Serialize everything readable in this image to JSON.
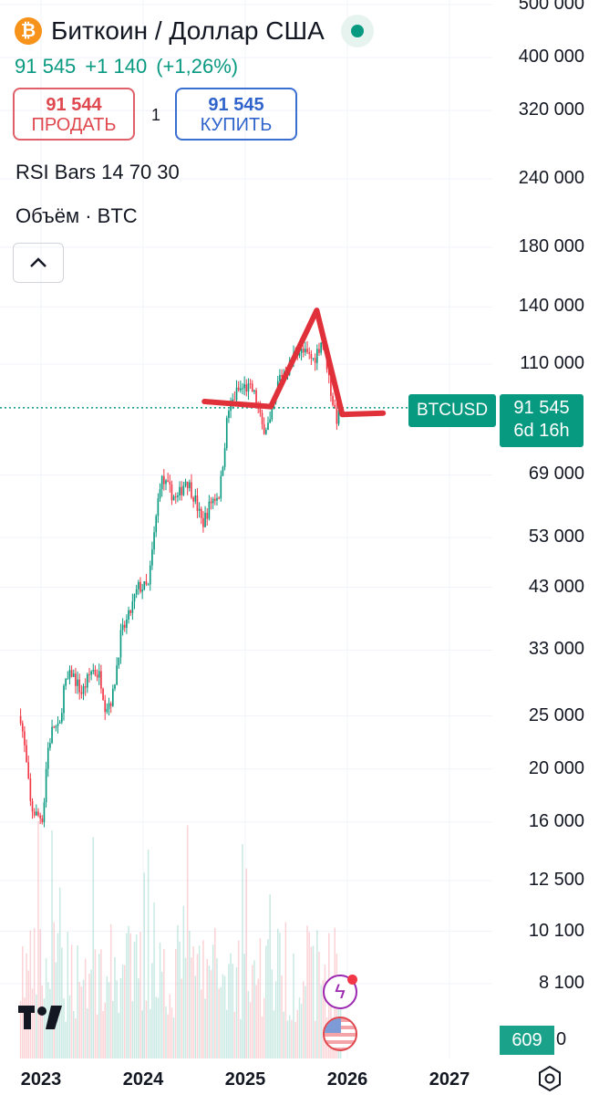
{
  "header": {
    "symbol_title": "Биткоин / Доллар США",
    "icon": "bitcoin-icon",
    "last_price": "91 545",
    "change": "+1 140",
    "change_pct": "(+1,26%)"
  },
  "trade": {
    "sell_price": "91 544",
    "sell_label": "ПРОДАТЬ",
    "quantity": "1",
    "buy_price": "91 545",
    "buy_label": "КУПИТЬ"
  },
  "indicators": {
    "rsi": "RSI Bars 14 70 30",
    "volume": "Объём · BTC"
  },
  "price_tag": {
    "symbol": "BTCUSD",
    "price": "91 545",
    "countdown": "6d 16h"
  },
  "volume_tag": {
    "value": "609",
    "extra": "0"
  },
  "colors": {
    "up": "#089981",
    "down": "#f23645",
    "drawing": "#e0303a",
    "accent": "#089981"
  },
  "chart_data": {
    "type": "candlestick",
    "title": "",
    "xlabel": "",
    "ylabel": "",
    "log_scale": true,
    "grid": true,
    "y_ticks": [
      500000,
      400000,
      320000,
      240000,
      180000,
      140000,
      110000,
      69000,
      53000,
      43000,
      33000,
      25000,
      20000,
      16000,
      12500,
      10100,
      8100
    ],
    "y_tick_labels": [
      "500 000",
      "400 000",
      "320 000",
      "240 000",
      "180 000",
      "140 000",
      "110 000",
      "69 000",
      "53 000",
      "43 000",
      "33 000",
      "25 000",
      "20 000",
      "16 000",
      "12 500",
      "10 100",
      "8 100"
    ],
    "x_tick_labels": [
      "2023",
      "2024",
      "2025",
      "2026",
      "2027"
    ],
    "x_ticks": [
      2023,
      2024,
      2025,
      2026,
      2027
    ],
    "x_range": [
      2022.8,
      2027.5
    ],
    "current_price": 91545,
    "price_path": [
      [
        2022.8,
        25000
      ],
      [
        2022.85,
        21000
      ],
      [
        2022.9,
        17000
      ],
      [
        2022.95,
        16500
      ],
      [
        2023.02,
        16300
      ],
      [
        2023.06,
        21500
      ],
      [
        2023.12,
        24000
      ],
      [
        2023.18,
        23500
      ],
      [
        2023.22,
        28000
      ],
      [
        2023.3,
        30000
      ],
      [
        2023.4,
        27500
      ],
      [
        2023.5,
        30500
      ],
      [
        2023.58,
        29500
      ],
      [
        2023.63,
        26000
      ],
      [
        2023.7,
        27000
      ],
      [
        2023.78,
        35000
      ],
      [
        2023.86,
        38000
      ],
      [
        2023.95,
        43000
      ],
      [
        2024.05,
        43000
      ],
      [
        2024.1,
        52000
      ],
      [
        2024.17,
        68000
      ],
      [
        2024.25,
        65000
      ],
      [
        2024.33,
        62000
      ],
      [
        2024.42,
        68000
      ],
      [
        2024.5,
        63000
      ],
      [
        2024.58,
        56000
      ],
      [
        2024.67,
        62000
      ],
      [
        2024.75,
        64000
      ],
      [
        2024.83,
        90000
      ],
      [
        2024.92,
        98000
      ],
      [
        2025.0,
        100000
      ],
      [
        2025.08,
        98000
      ],
      [
        2025.17,
        84000
      ],
      [
        2025.25,
        86000
      ],
      [
        2025.33,
        104000
      ],
      [
        2025.42,
        108000
      ],
      [
        2025.5,
        117000
      ],
      [
        2025.58,
        115000
      ],
      [
        2025.67,
        112000
      ],
      [
        2025.75,
        122000
      ],
      [
        2025.8,
        110000
      ],
      [
        2025.85,
        95000
      ],
      [
        2025.9,
        87000
      ],
      [
        2025.95,
        91545
      ]
    ],
    "annotations": {
      "drawn_pattern": [
        [
          2024.6,
          94000
        ],
        [
          2025.25,
          92000
        ],
        [
          2025.7,
          138000
        ],
        [
          2025.95,
          89000
        ],
        [
          2026.35,
          89500
        ]
      ]
    }
  }
}
